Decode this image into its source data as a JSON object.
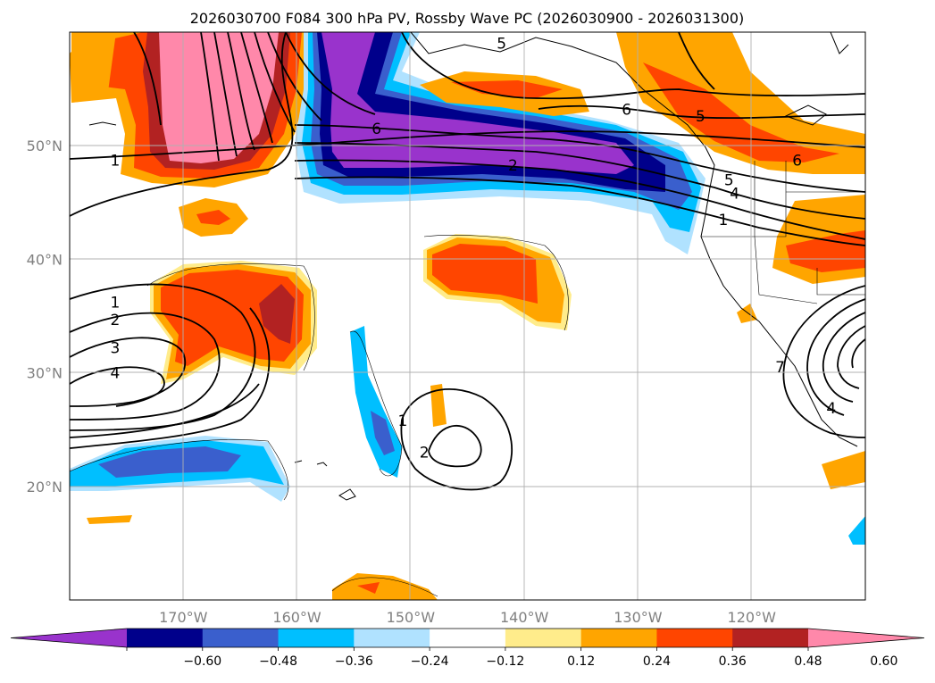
{
  "title": "2026030700 F084 300 hPa PV, Rossby Wave PC (2026030900 - 2026031300)",
  "map": {
    "lon_ticks": [
      "170°W",
      "160°W",
      "150°W",
      "140°W",
      "130°W",
      "120°W"
    ],
    "lat_ticks": [
      "50°N",
      "40°N",
      "30°N",
      "20°N"
    ],
    "lon_values": [
      -170,
      -160,
      -150,
      -140,
      -130,
      -120
    ],
    "lat_values": [
      50,
      40,
      30,
      20
    ],
    "lon_range": [
      -180,
      -110
    ],
    "lat_range": [
      10,
      60
    ],
    "grid": true
  },
  "contour_labels": [
    {
      "text": "1",
      "lon": -176,
      "lat": 48.7
    },
    {
      "text": "6",
      "lon": -153,
      "lat": 51.5
    },
    {
      "text": "2",
      "lon": -141,
      "lat": 48.3
    },
    {
      "text": "5",
      "lon": -142,
      "lat": 59.0
    },
    {
      "text": "5",
      "lon": -124.5,
      "lat": 52.6
    },
    {
      "text": "6",
      "lon": -131,
      "lat": 53.2
    },
    {
      "text": "5",
      "lon": -122,
      "lat": 47.0
    },
    {
      "text": "4",
      "lon": -121.5,
      "lat": 45.8
    },
    {
      "text": "1",
      "lon": -122.5,
      "lat": 43.5
    },
    {
      "text": "6",
      "lon": -116,
      "lat": 48.7
    },
    {
      "text": "1",
      "lon": -176,
      "lat": 36.2
    },
    {
      "text": "2",
      "lon": -176,
      "lat": 34.7
    },
    {
      "text": "3",
      "lon": -176,
      "lat": 32.2
    },
    {
      "text": "4",
      "lon": -176,
      "lat": 30.0
    },
    {
      "text": "1",
      "lon": -150.7,
      "lat": 25.8
    },
    {
      "text": "2",
      "lon": -148.8,
      "lat": 23.0
    },
    {
      "text": "7",
      "lon": -117.5,
      "lat": 30.5
    },
    {
      "text": "4",
      "lon": -113,
      "lat": 26.9
    }
  ],
  "colorbar": {
    "tick_labels": [
      "−0.60",
      "−0.48",
      "−0.36",
      "−0.24",
      "−0.12",
      "0.12",
      "0.24",
      "0.36",
      "0.48",
      "0.60"
    ],
    "colors": [
      "#9933cc",
      "#00008b",
      "#3a5fcd",
      "#00bfff",
      "#b0e2ff",
      "#ffffff",
      "#ffec8b",
      "#ffa500",
      "#ff4500",
      "#b22222",
      "#ff88aa"
    ]
  }
}
